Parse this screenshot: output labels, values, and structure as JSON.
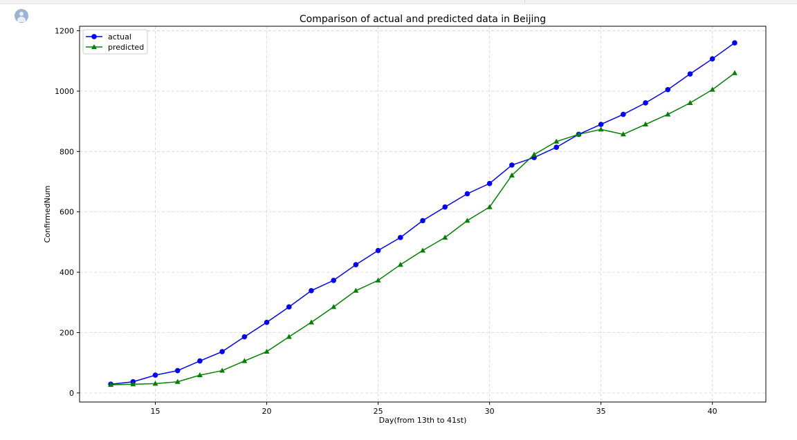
{
  "colors": {
    "actual": "#0000ff",
    "predicted": "#008000",
    "grid": "#d3d3d3",
    "axis": "#000000"
  },
  "icons": {
    "avatar": "user-avatar-icon"
  },
  "chart_data": {
    "type": "line",
    "title": "Comparison of actual and predicted data in Beijing",
    "xlabel": "Day(from 13th to 41st)",
    "ylabel": "ConfirmedNum",
    "xlim": [
      11.6,
      42.4
    ],
    "ylim": [
      -30,
      1215
    ],
    "xticks": [
      15,
      20,
      25,
      30,
      35,
      40
    ],
    "xtick_labels": [
      "15",
      "20",
      "25",
      "30",
      "35",
      "40"
    ],
    "yticks": [
      0,
      200,
      400,
      600,
      800,
      1000,
      1200
    ],
    "ytick_labels": [
      "0",
      "200",
      "400",
      "600",
      "800",
      "1000",
      "1200"
    ],
    "grid": true,
    "legend_position": "upper-left",
    "x": [
      13,
      14,
      15,
      16,
      17,
      18,
      19,
      20,
      21,
      22,
      23,
      24,
      25,
      26,
      27,
      28,
      29,
      30,
      31,
      32,
      33,
      34,
      35,
      36,
      37,
      38,
      39,
      40,
      41
    ],
    "series": [
      {
        "name": "actual",
        "marker": "circle",
        "color": "#0000ff",
        "values": [
          29,
          37,
          59,
          74,
          106,
          137,
          186,
          234,
          285,
          339,
          373,
          425,
          472,
          515,
          571,
          616,
          660,
          694,
          755,
          780,
          814,
          857,
          890,
          923,
          961,
          1005,
          1057,
          1107,
          1160
        ]
      },
      {
        "name": "predicted",
        "marker": "triangle",
        "color": "#008000",
        "values": [
          27,
          29,
          31,
          37,
          59,
          74,
          106,
          137,
          186,
          234,
          285,
          339,
          373,
          425,
          472,
          515,
          571,
          616,
          721,
          790,
          833,
          857,
          873,
          857,
          890,
          923,
          961,
          1005,
          1060
        ]
      }
    ]
  }
}
